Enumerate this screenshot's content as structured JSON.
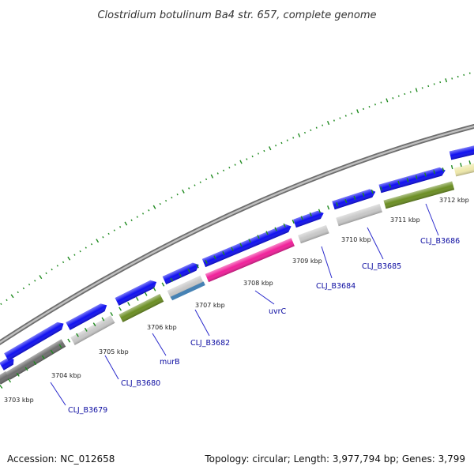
{
  "title": "Clostridium botulinum Ba4 str. 657, complete genome",
  "footer": {
    "accession": "Accession: NC_012658",
    "summary": "Topology: circular; Length: 3,977,794 bp; Genes: 3,799"
  },
  "scale_labels": [
    "3703 kbp",
    "3704 kbp",
    "3705 kbp",
    "3706 kbp",
    "3707 kbp",
    "3708 kbp",
    "3709 kbp",
    "3710 kbp",
    "3711 kbp",
    "3712 kbp"
  ],
  "gene_labels": [
    "CLJ_B3679",
    "CLJ_B3680",
    "murB",
    "CLJ_B3682",
    "uvrC",
    "CLJ_B3684",
    "CLJ_B3685",
    "CLJ_B3686"
  ],
  "colors": {
    "backbone": "#8c8c8c",
    "forward_strand": "#1010f0",
    "ticks": "#1f8a1f",
    "label_link": "#2a2acc",
    "olive": "#6b8e23",
    "magenta": "#f0209a",
    "light_gray": "#c8c8c8",
    "dark_gray": "#6e6e6e",
    "steel_blue": "#4682b4",
    "pale_yellow": "#eee8aa"
  }
}
